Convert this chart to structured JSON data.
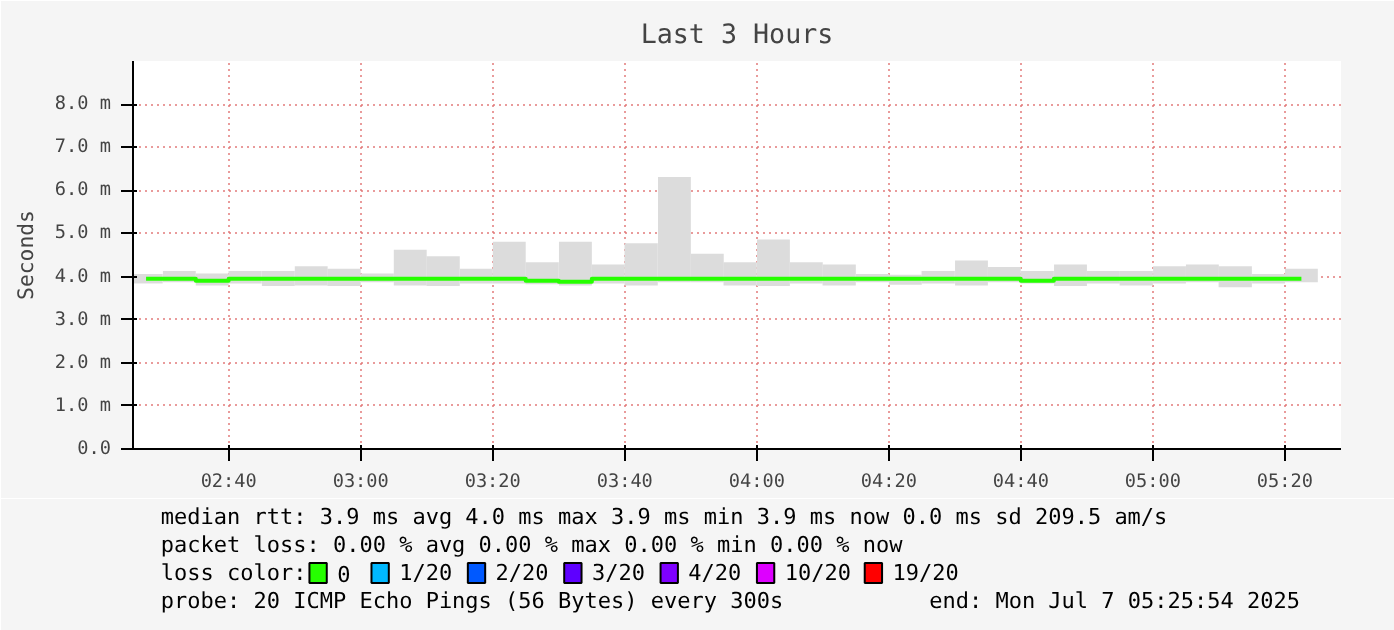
{
  "chart_data": {
    "type": "bar",
    "title": "Last 3 Hours",
    "ylabel": "Seconds",
    "x": [
      2.458,
      2.542,
      2.625,
      2.708,
      2.792,
      2.875,
      2.958,
      3.042,
      3.125,
      3.208,
      3.292,
      3.375,
      3.458,
      3.542,
      3.625,
      3.708,
      3.792,
      3.875,
      3.958,
      4.042,
      4.125,
      4.208,
      4.292,
      4.375,
      4.458,
      4.542,
      4.625,
      4.708,
      4.792,
      4.875,
      4.958,
      5.042,
      5.125,
      5.208,
      5.292,
      5.375
    ],
    "series": [
      {
        "color": "#dcdcdc",
        "base": [
          3.84,
          3.87,
          3.79,
          3.84,
          3.78,
          3.79,
          3.78,
          3.87,
          3.79,
          3.78,
          3.84,
          3.84,
          3.82,
          3.79,
          3.84,
          3.79,
          3.87,
          3.87,
          3.79,
          3.78,
          3.84,
          3.79,
          3.87,
          3.81,
          3.84,
          3.79,
          3.87,
          3.84,
          3.78,
          3.84,
          3.79,
          3.84,
          3.87,
          3.75,
          3.84,
          3.87
        ],
        "values": [
          0.22,
          0.26,
          0.28,
          0.29,
          0.35,
          0.45,
          0.4,
          0.2,
          0.83,
          0.69,
          0.34,
          0.97,
          0.51,
          1.02,
          0.44,
          0.98,
          2.44,
          0.66,
          0.54,
          1.08,
          0.49,
          0.49,
          0.19,
          0.23,
          0.29,
          0.58,
          0.35,
          0.29,
          0.5,
          0.29,
          0.34,
          0.4,
          0.41,
          0.49,
          0.22,
          0.31
        ]
      },
      {
        "type": "step",
        "name": "0",
        "color": "#26ff00",
        "values": [
          3.95,
          3.95,
          3.9,
          3.95,
          3.95,
          3.95,
          3.95,
          3.95,
          3.95,
          3.95,
          3.95,
          3.95,
          3.9,
          3.88,
          3.95,
          3.95,
          3.95,
          3.95,
          3.95,
          3.95,
          3.95,
          3.95,
          3.95,
          3.95,
          3.95,
          3.95,
          3.95,
          3.9,
          3.95,
          3.95,
          3.95,
          3.95,
          3.95,
          3.95,
          3.95,
          3.95
        ]
      },
      {
        "type": "bar",
        "name": "1/20",
        "color": "#00b8ff",
        "values": [
          null,
          null,
          null,
          null,
          null,
          null,
          null,
          null,
          null,
          null,
          null,
          null,
          null,
          null,
          null,
          null,
          null,
          null,
          null,
          null,
          null,
          null,
          null,
          null,
          null,
          null,
          null,
          null,
          null,
          null,
          null,
          null,
          null,
          null,
          null,
          null
        ]
      },
      {
        "type": "bar",
        "name": "2/20",
        "color": "#0059ff",
        "values": [
          null,
          null,
          null,
          null,
          null,
          null,
          null,
          null,
          null,
          null,
          null,
          null,
          null,
          null,
          null,
          null,
          null,
          null,
          null,
          null,
          null,
          null,
          null,
          null,
          null,
          null,
          null,
          null,
          null,
          null,
          null,
          null,
          null,
          null,
          null,
          null
        ]
      },
      {
        "type": "bar",
        "name": "3/20",
        "color": "#5e00ff",
        "values": [
          null,
          null,
          null,
          null,
          null,
          null,
          null,
          null,
          null,
          null,
          null,
          null,
          null,
          null,
          null,
          null,
          null,
          null,
          null,
          null,
          null,
          null,
          null,
          null,
          null,
          null,
          null,
          null,
          null,
          null,
          null,
          null,
          null,
          null,
          null,
          null
        ]
      },
      {
        "type": "bar",
        "name": "4/20",
        "color": "#7e00ff",
        "values": [
          null,
          null,
          null,
          null,
          null,
          null,
          null,
          null,
          null,
          null,
          null,
          null,
          null,
          null,
          null,
          null,
          null,
          null,
          null,
          null,
          null,
          null,
          null,
          null,
          null,
          null,
          null,
          null,
          null,
          null,
          null,
          null,
          null,
          null,
          null,
          null
        ]
      },
      {
        "type": "bar",
        "name": "10/20",
        "color": "#dd00ff",
        "values": [
          null,
          null,
          null,
          null,
          null,
          null,
          null,
          null,
          null,
          null,
          null,
          null,
          null,
          null,
          null,
          null,
          null,
          null,
          null,
          null,
          null,
          null,
          null,
          null,
          null,
          null,
          null,
          null,
          null,
          null,
          null,
          null,
          null,
          null,
          null,
          null
        ]
      },
      {
        "type": "bar",
        "name": "19/20",
        "color": "#ff0000",
        "values": [
          null,
          null,
          null,
          null,
          null,
          null,
          null,
          null,
          null,
          null,
          null,
          null,
          null,
          null,
          null,
          null,
          null,
          null,
          null,
          null,
          null,
          null,
          null,
          null,
          null,
          null,
          null,
          null,
          null,
          null,
          null,
          null,
          null,
          null,
          null,
          null
        ]
      }
    ],
    "legend_title": "loss color:",
    "legend": "bottom",
    "xlim": [
      2.425,
      5.475
    ],
    "ylim": [
      0,
      9.0
    ],
    "xticks": [
      {
        "value": 2.6667,
        "label": "02:40"
      },
      {
        "value": 3.0,
        "label": "03:00"
      },
      {
        "value": 3.3333,
        "label": "03:20"
      },
      {
        "value": 3.6667,
        "label": "03:40"
      },
      {
        "value": 4.0,
        "label": "04:00"
      },
      {
        "value": 4.3333,
        "label": "04:20"
      },
      {
        "value": 4.6667,
        "label": "04:40"
      },
      {
        "value": 5.0,
        "label": "05:00"
      },
      {
        "value": 5.3333,
        "label": "05:20"
      }
    ],
    "yticks": [
      {
        "value": 0,
        "label": "0.0"
      },
      {
        "value": 1,
        "label": "1.0 m"
      },
      {
        "value": 2,
        "label": "2.0 m"
      },
      {
        "value": 3,
        "label": "3.0 m"
      },
      {
        "value": 4,
        "label": "4.0 m"
      },
      {
        "value": 5,
        "label": "5.0 m"
      },
      {
        "value": 6,
        "label": "6.0 m"
      },
      {
        "value": 7,
        "label": "7.0 m"
      },
      {
        "value": 8,
        "label": "8.0 m"
      }
    ],
    "grid": true,
    "annotations": [
      "median rtt:  3.9 ms avg  4.0 ms max  3.9 ms min  3.9 ms now  0.0 ms sd  209.5   am/s",
      "packet loss: 0.00 % avg  0.00 % max  0.00 % min  0.00 % now",
      "probe:       20 ICMP Echo Pings (56 Bytes) every 300s",
      "end: Mon Jul  7 05:25:54 2025"
    ]
  }
}
